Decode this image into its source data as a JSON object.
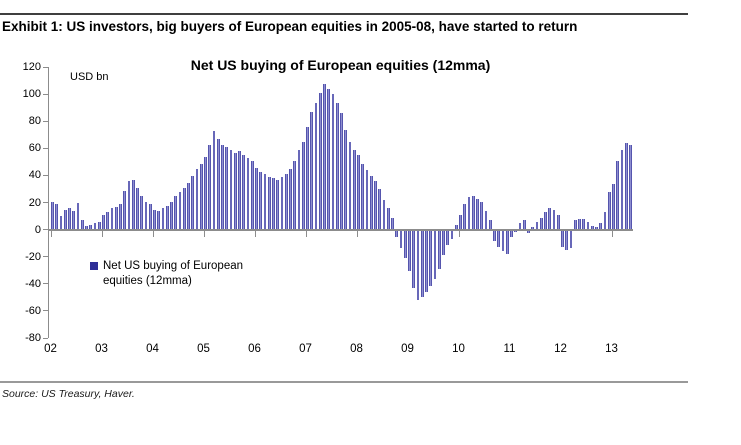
{
  "header": {
    "title": "Exhibit 1: US investors, big buyers of European equities in 2005-08, have started to return"
  },
  "chart": {
    "title": "Net US buying of European equities (12mma)",
    "unit_label": "USD bn",
    "legend_label": "Net US buying of European equities (12mma)"
  },
  "footer": {
    "source": "Source: US Treasury, Haver."
  },
  "colors": {
    "bar_edge": "#2e2e96",
    "bar_core": "#a2a2dc",
    "axis": "#8c8c8c",
    "rule_top": "#3f3f3f",
    "rule_bottom": "#999999"
  },
  "chart_data": {
    "type": "bar",
    "title": "Net US buying of European equities (12mma)",
    "ylabel": "USD bn",
    "series_name": "Net US buying of European equities (12mma)",
    "frequency": "monthly",
    "x_start": "2002-01",
    "x_end": "2013-05",
    "ylim": [
      -80,
      120
    ],
    "ytick_step": 20,
    "yticks": [
      120,
      100,
      80,
      60,
      40,
      20,
      0,
      -20,
      -40,
      -60,
      -80
    ],
    "xtick_labels": [
      "02",
      "03",
      "04",
      "05",
      "06",
      "07",
      "08",
      "09",
      "10",
      "11",
      "12",
      "13"
    ],
    "grid": false,
    "legend_position": "inside-bottom-left",
    "values": [
      20,
      18,
      9,
      14,
      15,
      13,
      19,
      6,
      2,
      3,
      4,
      5,
      10,
      12,
      15,
      16,
      18,
      28,
      35,
      36,
      30,
      24,
      20,
      18,
      14,
      13,
      15,
      17,
      20,
      24,
      27,
      30,
      34,
      39,
      44,
      48,
      53,
      62,
      72,
      66,
      62,
      60,
      58,
      56,
      57,
      54,
      52,
      50,
      45,
      42,
      40,
      38,
      37,
      36,
      38,
      40,
      44,
      50,
      58,
      64,
      75,
      86,
      93,
      100,
      107,
      103,
      99,
      93,
      85,
      73,
      64,
      58,
      54,
      48,
      43,
      39,
      35,
      29,
      21,
      15,
      8,
      -5,
      -13,
      -20,
      -30,
      -42,
      -51,
      -49,
      -45,
      -41,
      -36,
      -28,
      -18,
      -11,
      -6,
      3,
      10,
      18,
      23,
      24,
      22,
      20,
      13,
      6,
      -8,
      -12,
      -15,
      -17,
      -5,
      -1,
      4,
      6,
      -2,
      1,
      5,
      8,
      12,
      15,
      14,
      10,
      -12,
      -14,
      -13,
      6,
      7,
      7,
      5,
      2,
      1,
      4,
      12,
      27,
      33,
      50,
      58,
      63,
      62
    ]
  }
}
